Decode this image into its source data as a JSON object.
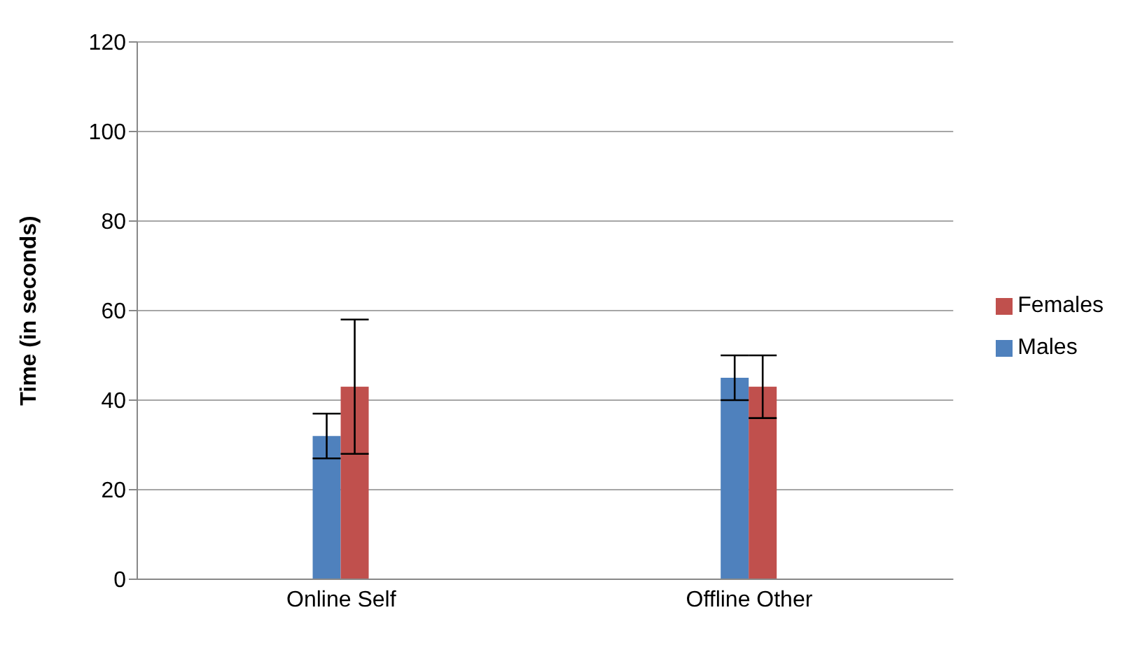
{
  "chart_data": {
    "type": "bar",
    "ylabel": "Time (in seconds)",
    "categories": [
      "Online Self",
      "Offline Other"
    ],
    "series": [
      {
        "name": "Males",
        "color": "#4f81bd",
        "values": [
          32,
          45
        ],
        "errors": [
          5,
          5
        ]
      },
      {
        "name": "Females",
        "color": "#c0504d",
        "values": [
          43,
          43
        ],
        "errors": [
          15,
          7
        ]
      }
    ],
    "ylim": [
      0,
      120
    ],
    "yticks": [
      0,
      20,
      40,
      60,
      80,
      100,
      120
    ],
    "grid": "y",
    "legend": "right"
  }
}
